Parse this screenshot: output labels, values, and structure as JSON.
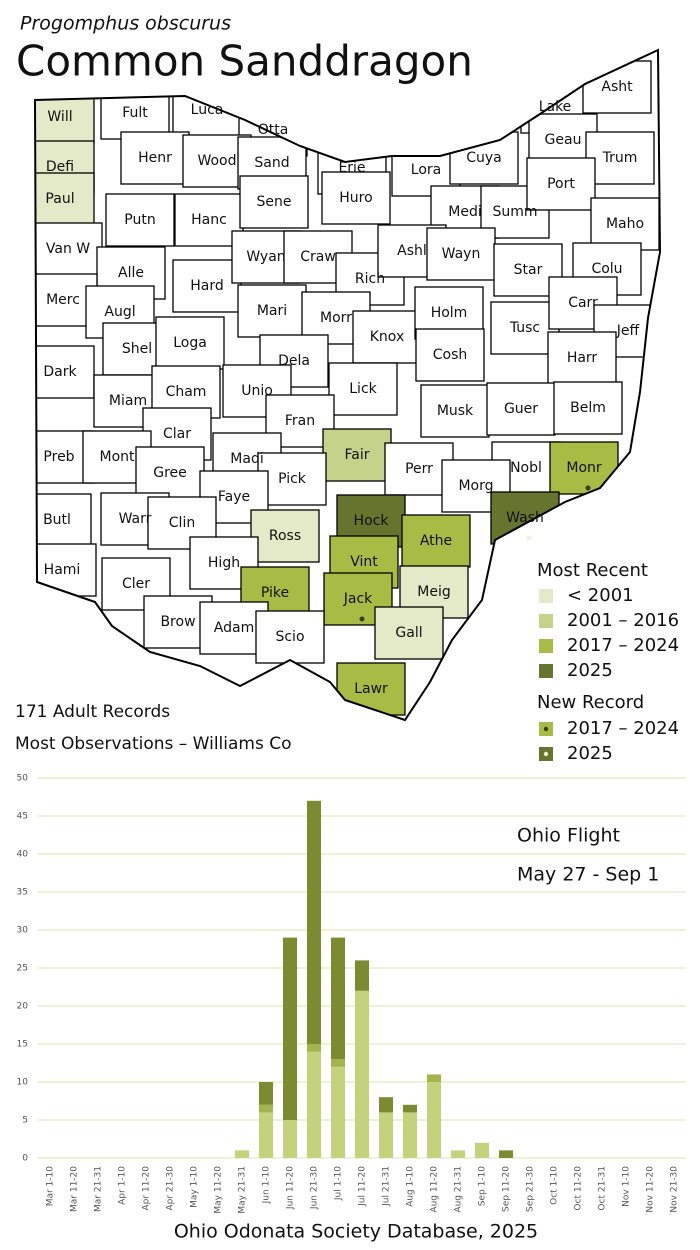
{
  "header": {
    "species": "Progomphus obscurus",
    "title": "Common Sanddragon"
  },
  "stats": [
    "171 Adult Records",
    "Most Observations – Williams Co"
  ],
  "map": {
    "legend": {
      "title": "Most Recent",
      "items": [
        {
          "label": "< 2001",
          "color": "#e4e9c8"
        },
        {
          "label": "2001 – 2016",
          "color": "#c4d28a"
        },
        {
          "label": "2017 – 2024",
          "color": "#a8bc45"
        },
        {
          "label": "2025",
          "color": "#66752e"
        }
      ]
    },
    "new_record": {
      "title": "New Record",
      "items": [
        {
          "label": "2017 – 2024",
          "color": "#a8bc45",
          "dot": "#33401a"
        },
        {
          "label": "2025",
          "color": "#66752e",
          "dot": "#eef2d8"
        }
      ]
    },
    "counties": [
      {
        "name": "Will",
        "color": "#e4e9c8"
      },
      {
        "name": "Fult",
        "color": "#ffffff"
      },
      {
        "name": "Luca",
        "color": "#ffffff"
      },
      {
        "name": "Otta",
        "color": "#ffffff"
      },
      {
        "name": "Lake",
        "color": "#ffffff"
      },
      {
        "name": "Asht",
        "color": "#ffffff"
      },
      {
        "name": "Defi",
        "color": "#e4e9c8"
      },
      {
        "name": "Henr",
        "color": "#ffffff"
      },
      {
        "name": "Wood",
        "color": "#ffffff"
      },
      {
        "name": "Sand",
        "color": "#ffffff"
      },
      {
        "name": "Erie",
        "color": "#ffffff"
      },
      {
        "name": "Lora",
        "color": "#ffffff"
      },
      {
        "name": "Cuya",
        "color": "#ffffff"
      },
      {
        "name": "Geau",
        "color": "#ffffff"
      },
      {
        "name": "Trum",
        "color": "#ffffff"
      },
      {
        "name": "Paul",
        "color": "#e4e9c8"
      },
      {
        "name": "Putn",
        "color": "#ffffff"
      },
      {
        "name": "Hanc",
        "color": "#ffffff"
      },
      {
        "name": "Sene",
        "color": "#ffffff"
      },
      {
        "name": "Huro",
        "color": "#ffffff"
      },
      {
        "name": "Medi",
        "color": "#ffffff"
      },
      {
        "name": "Summ",
        "color": "#ffffff"
      },
      {
        "name": "Port",
        "color": "#ffffff"
      },
      {
        "name": "Maho",
        "color": "#ffffff"
      },
      {
        "name": "Van W",
        "color": "#ffffff"
      },
      {
        "name": "Alle",
        "color": "#ffffff"
      },
      {
        "name": "Hard",
        "color": "#ffffff"
      },
      {
        "name": "Wyan",
        "color": "#ffffff"
      },
      {
        "name": "Craw",
        "color": "#ffffff"
      },
      {
        "name": "Rich",
        "color": "#ffffff"
      },
      {
        "name": "Ashl",
        "color": "#ffffff"
      },
      {
        "name": "Wayn",
        "color": "#ffffff"
      },
      {
        "name": "Star",
        "color": "#ffffff"
      },
      {
        "name": "Colu",
        "color": "#ffffff"
      },
      {
        "name": "Merc",
        "color": "#ffffff"
      },
      {
        "name": "Augl",
        "color": "#ffffff"
      },
      {
        "name": "Mari",
        "color": "#ffffff"
      },
      {
        "name": "Morr",
        "color": "#ffffff"
      },
      {
        "name": "Knox",
        "color": "#ffffff"
      },
      {
        "name": "Holm",
        "color": "#ffffff"
      },
      {
        "name": "Tusc",
        "color": "#ffffff"
      },
      {
        "name": "Carr",
        "color": "#ffffff"
      },
      {
        "name": "Jeff",
        "color": "#ffffff"
      },
      {
        "name": "Shel",
        "color": "#ffffff"
      },
      {
        "name": "Loga",
        "color": "#ffffff"
      },
      {
        "name": "Dela",
        "color": "#ffffff"
      },
      {
        "name": "Cosh",
        "color": "#ffffff"
      },
      {
        "name": "Harr",
        "color": "#ffffff"
      },
      {
        "name": "Dark",
        "color": "#ffffff"
      },
      {
        "name": "Miam",
        "color": "#ffffff"
      },
      {
        "name": "Cham",
        "color": "#ffffff"
      },
      {
        "name": "Unio",
        "color": "#ffffff"
      },
      {
        "name": "Lick",
        "color": "#ffffff"
      },
      {
        "name": "Musk",
        "color": "#ffffff"
      },
      {
        "name": "Guer",
        "color": "#ffffff"
      },
      {
        "name": "Belm",
        "color": "#ffffff"
      },
      {
        "name": "Clar",
        "color": "#ffffff"
      },
      {
        "name": "Fran",
        "color": "#ffffff"
      },
      {
        "name": "Madi",
        "color": "#ffffff"
      },
      {
        "name": "Fair",
        "color": "#c4d28a"
      },
      {
        "name": "Perr",
        "color": "#ffffff"
      },
      {
        "name": "Nobl",
        "color": "#ffffff"
      },
      {
        "name": "Monr",
        "color": "#a8bc45",
        "dot": "#33401a"
      },
      {
        "name": "Preb",
        "color": "#ffffff"
      },
      {
        "name": "Mont",
        "color": "#ffffff"
      },
      {
        "name": "Gree",
        "color": "#ffffff"
      },
      {
        "name": "Pick",
        "color": "#ffffff"
      },
      {
        "name": "Faye",
        "color": "#ffffff"
      },
      {
        "name": "Morg",
        "color": "#ffffff"
      },
      {
        "name": "Hock",
        "color": "#66752e"
      },
      {
        "name": "Wash",
        "color": "#66752e",
        "dot": "#eef2d8"
      },
      {
        "name": "Butl",
        "color": "#ffffff"
      },
      {
        "name": "Warr",
        "color": "#ffffff"
      },
      {
        "name": "Clin",
        "color": "#ffffff"
      },
      {
        "name": "Ross",
        "color": "#e4e9c8"
      },
      {
        "name": "Athe",
        "color": "#a8bc45"
      },
      {
        "name": "Vint",
        "color": "#a8bc45"
      },
      {
        "name": "High",
        "color": "#ffffff"
      },
      {
        "name": "Hami",
        "color": "#ffffff"
      },
      {
        "name": "Cler",
        "color": "#ffffff"
      },
      {
        "name": "Pike",
        "color": "#a8bc45"
      },
      {
        "name": "Jack",
        "color": "#a8bc45",
        "dot": "#33401a"
      },
      {
        "name": "Meig",
        "color": "#e4e9c8"
      },
      {
        "name": "Brow",
        "color": "#ffffff"
      },
      {
        "name": "Adam",
        "color": "#ffffff"
      },
      {
        "name": "Scio",
        "color": "#ffffff"
      },
      {
        "name": "Gall",
        "color": "#e4e9c8"
      },
      {
        "name": "Lawr",
        "color": "#a8bc45"
      }
    ]
  },
  "chart_data": {
    "type": "bar",
    "stacked": true,
    "annotations": [
      "Ohio Flight",
      "May 27 - Sep 1"
    ],
    "footer": "Ohio Odonata Society Database, 2025",
    "categories": [
      "Mar 1-10",
      "Mar 11-20",
      "Mar 21-31",
      "Apr 1-10",
      "Apr 11-20",
      "Apr 21-30",
      "May 1-10",
      "May 11-20",
      "May 21-31",
      "Jun 1-10",
      "Jun 11-20",
      "Jun 21-30",
      "Jul 1-10",
      "Jul 11-20",
      "Jul 21-31",
      "Aug 1-10",
      "Aug 11-20",
      "Aug 21-31",
      "Sep 1-10",
      "Sep 11-20",
      "Sep 21-30",
      "Oct 1-10",
      "Oct 11-20",
      "Oct 21-31",
      "Nov 1-10",
      "Nov 11-20",
      "Nov 21-30"
    ],
    "series": [
      {
        "color": "#c4d27c",
        "values": [
          0,
          0,
          0,
          0,
          0,
          0,
          0,
          0,
          1,
          6,
          5,
          14,
          12,
          22,
          6,
          6,
          10,
          1,
          2,
          0,
          0,
          0,
          0,
          0,
          0,
          0,
          0
        ]
      },
      {
        "color": "#a2b44a",
        "values": [
          0,
          0,
          0,
          0,
          0,
          0,
          0,
          0,
          0,
          1,
          0,
          1,
          1,
          0,
          0,
          0,
          1,
          0,
          0,
          0,
          0,
          0,
          0,
          0,
          0,
          0,
          0
        ]
      },
      {
        "color": "#7c8a30",
        "values": [
          0,
          0,
          0,
          0,
          0,
          0,
          0,
          0,
          0,
          3,
          24,
          32,
          16,
          4,
          2,
          1,
          0,
          0,
          0,
          1,
          0,
          0,
          0,
          0,
          0,
          0,
          0
        ]
      }
    ],
    "ylim": [
      0,
      50
    ],
    "yticks": [
      0,
      5,
      10,
      15,
      20,
      25,
      30,
      35,
      40,
      45,
      50
    ],
    "grid": true,
    "grid_color": "#dfe4a8"
  }
}
